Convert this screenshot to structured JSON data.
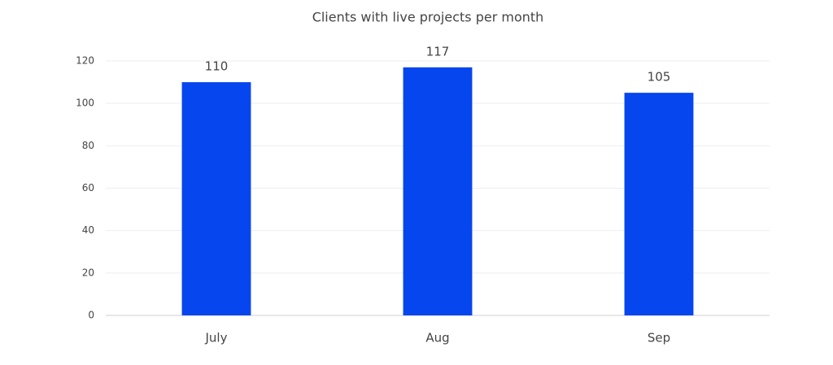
{
  "chart_data": {
    "type": "bar",
    "title": "Clients with live projects per month",
    "categories": [
      "July",
      "Aug",
      "Sep"
    ],
    "values": [
      110,
      117,
      105
    ],
    "color": "#0546ee",
    "ylim": [
      0,
      120
    ],
    "yticks": [
      0,
      20,
      40,
      60,
      80,
      100,
      120
    ],
    "grid": true
  }
}
